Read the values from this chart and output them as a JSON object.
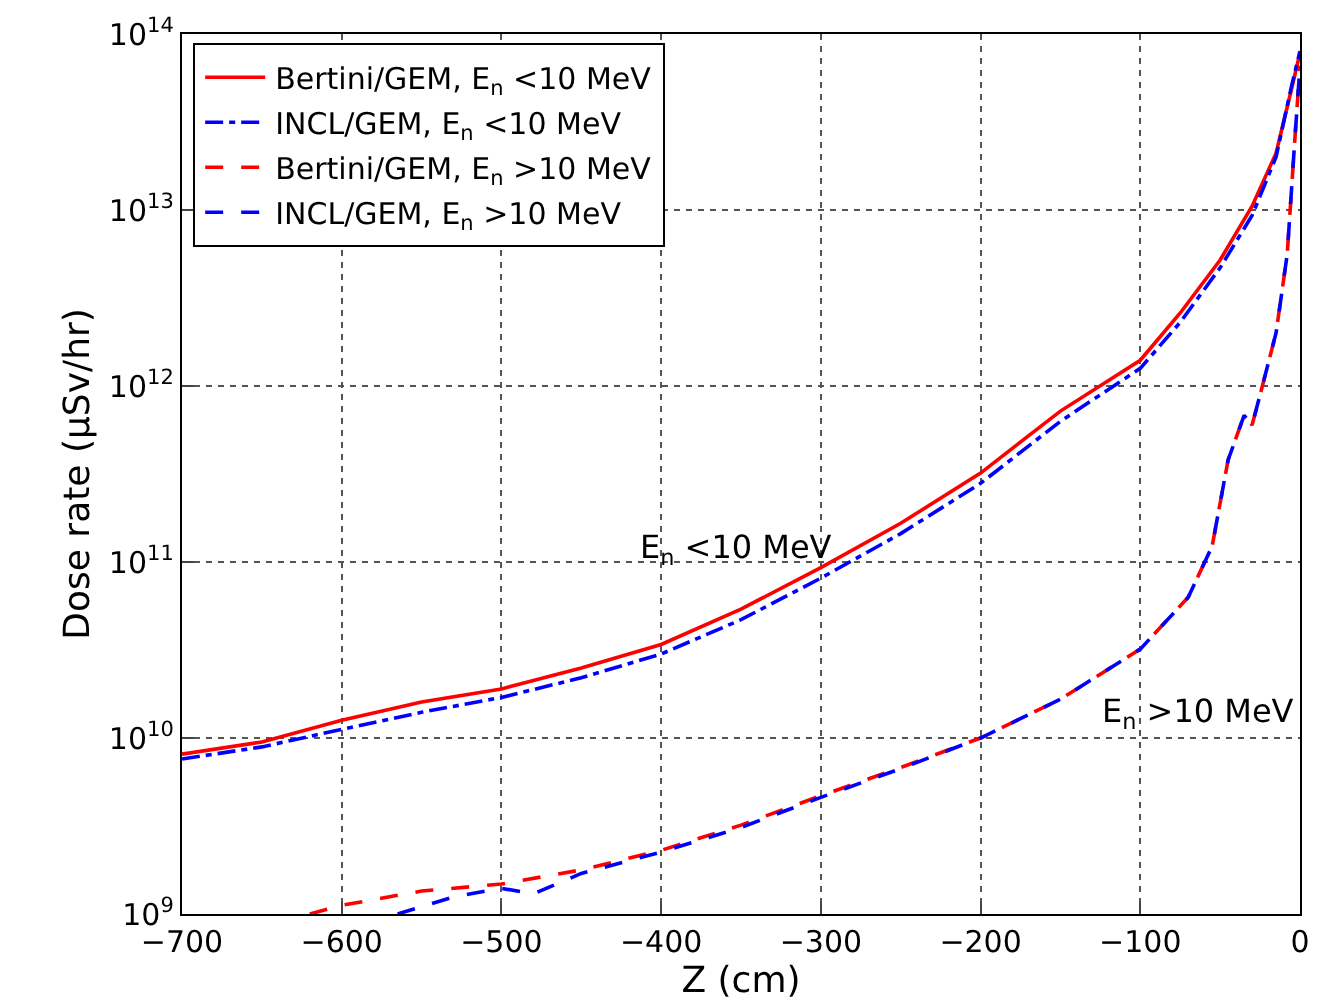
{
  "chart_data": {
    "type": "line",
    "xlabel": "Z (cm)",
    "ylabel": "Dose rate (μSv/hr)",
    "series": [
      {
        "name": "Bertini/GEM, E$_{n}$ <10 MeV",
        "color": "#ff0000",
        "line_style": "solid",
        "x": [
          -700,
          -650,
          -600,
          -550,
          -500,
          -450,
          -400,
          -350,
          -300,
          -250,
          -200,
          -150,
          -100,
          -75,
          -50,
          -30,
          -15,
          -5,
          0
        ],
        "values": [
          8100000000.0,
          9500000000.0,
          12600000000.0,
          16000000000.0,
          19000000000.0,
          25000000000.0,
          34000000000.0,
          54000000000.0,
          93000000000.0,
          166000000000.0,
          320000000000.0,
          720000000000.0,
          1400000000000.0,
          2600000000000.0,
          5200000000000.0,
          10500000000000.0,
          21000000000000.0,
          50000000000000.0,
          78000000000000.0
        ]
      },
      {
        "name": "INCL/GEM, E$_{n}$ <10 MeV",
        "color": "#0000ff",
        "line_style": "dashdot",
        "x": [
          -700,
          -650,
          -600,
          -550,
          -500,
          -450,
          -400,
          -350,
          -300,
          -250,
          -200,
          -150,
          -100,
          -75,
          -50,
          -30,
          -15,
          -5,
          0
        ],
        "values": [
          7600000000.0,
          8900000000.0,
          11200000000.0,
          14000000000.0,
          17000000000.0,
          22000000000.0,
          30000000000.0,
          47000000000.0,
          81000000000.0,
          145000000000.0,
          280000000000.0,
          630000000000.0,
          1260000000000.0,
          2300000000000.0,
          4700000000000.0,
          9300000000000.0,
          20000000000000.0,
          52000000000000.0,
          80000000000000.0
        ]
      },
      {
        "name": "Bertini/GEM, E$_{n}$ >10 MeV",
        "color": "#ff0000",
        "line_style": "dashed",
        "x": [
          -620,
          -600,
          -550,
          -500,
          -450,
          -400,
          -350,
          -300,
          -250,
          -200,
          -150,
          -100,
          -70,
          -55,
          -45,
          -35,
          -30,
          -25,
          -15,
          -8,
          -3,
          0
        ],
        "values": [
          1000000000.0,
          1120000000.0,
          1350000000.0,
          1480000000.0,
          1780000000.0,
          2300000000.0,
          3200000000.0,
          4700000000.0,
          6800000000.0,
          10000000000.0,
          16600000000.0,
          32000000000.0,
          63000000000.0,
          123000000000.0,
          380000000000.0,
          680000000000.0,
          600000000000.0,
          890000000000.0,
          2000000000000.0,
          5600000000000.0,
          27000000000000.0,
          66000000000000.0
        ]
      },
      {
        "name": "INCL/GEM, E$_{n}$ >10 MeV",
        "color": "#0000ff",
        "line_style": "dashed",
        "x": [
          -565,
          -530,
          -500,
          -480,
          -450,
          -400,
          -350,
          -300,
          -250,
          -200,
          -150,
          -100,
          -70,
          -55,
          -45,
          -35,
          -30,
          -25,
          -15,
          -8,
          -3,
          0
        ],
        "values": [
          1000000000.0,
          1250000000.0,
          1400000000.0,
          1300000000.0,
          1700000000.0,
          2250000000.0,
          3100000000.0,
          4600000000.0,
          6700000000.0,
          10000000000.0,
          16600000000.0,
          32000000000.0,
          63000000000.0,
          123000000000.0,
          380000000000.0,
          680000000000.0,
          600000000000.0,
          890000000000.0,
          2000000000000.0,
          5600000000000.0,
          27000000000000.0,
          66000000000000.0
        ]
      }
    ],
    "annotations": [
      "E$_{n}$ <10 MeV",
      "E$_{n}$ >10 MeV"
    ],
    "xlim": [
      -700,
      0
    ],
    "xticks": [
      -700,
      -600,
      -500,
      -400,
      -300,
      -200,
      -100,
      0
    ],
    "ylim": [
      1000000000.0,
      100000000000000.0
    ],
    "yticks": [
      {
        "value": 1000000000.0,
        "label": "10$^{9}$"
      },
      {
        "value": 10000000000.0,
        "label": "10$^{10}$"
      },
      {
        "value": 100000000000.0,
        "label": "10$^{11}$"
      },
      {
        "value": 1000000000000.0,
        "label": "10$^{12}$"
      },
      {
        "value": 10000000000000.0,
        "label": "10$^{13}$"
      },
      {
        "value": 100000000000000.0,
        "label": "10$^{14}$"
      }
    ],
    "log": "y",
    "grid": true,
    "legend": "top left",
    "marker": "none"
  }
}
